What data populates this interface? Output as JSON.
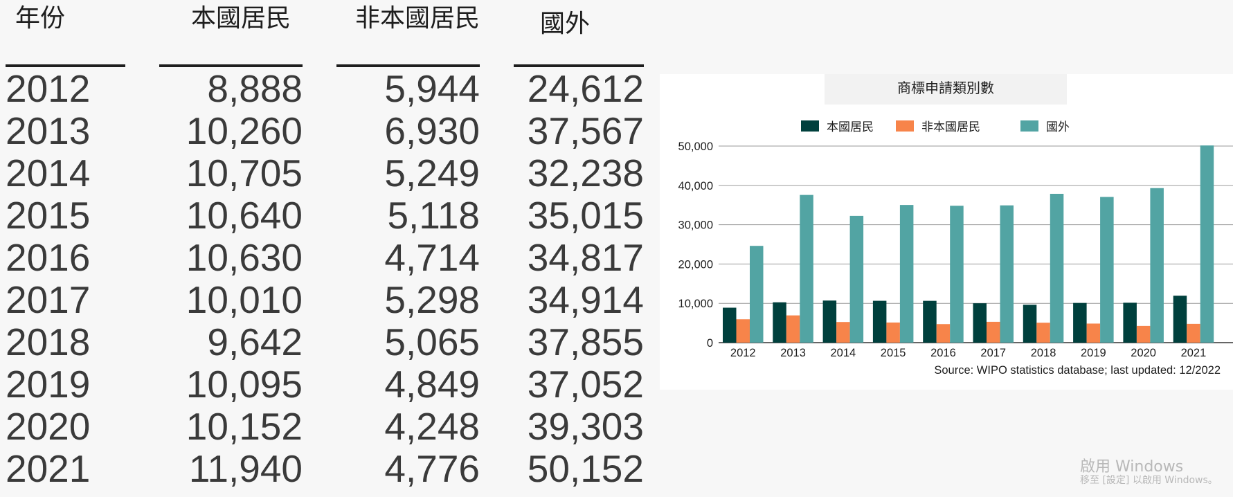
{
  "table": {
    "headers": [
      "年份",
      "本國居民",
      "非本國居民",
      "國外"
    ],
    "rows": [
      [
        "2012",
        "8,888",
        "5,944",
        "24,612"
      ],
      [
        "2013",
        "10,260",
        "6,930",
        "37,567"
      ],
      [
        "2014",
        "10,705",
        "5,249",
        "32,238"
      ],
      [
        "2015",
        "10,640",
        "5,118",
        "35,015"
      ],
      [
        "2016",
        "10,630",
        "4,714",
        "34,817"
      ],
      [
        "2017",
        "10,010",
        "5,298",
        "34,914"
      ],
      [
        "2018",
        "9,642",
        "5,065",
        "37,855"
      ],
      [
        "2019",
        "10,095",
        "4,849",
        "37,052"
      ],
      [
        "2020",
        "10,152",
        "4,248",
        "39,303"
      ],
      [
        "2021",
        "11,940",
        "4,776",
        "50,152"
      ]
    ]
  },
  "chart_data": {
    "type": "bar",
    "title": "商標申請類別數",
    "categories": [
      "2012",
      "2013",
      "2014",
      "2015",
      "2016",
      "2017",
      "2018",
      "2019",
      "2020",
      "2021"
    ],
    "series": [
      {
        "name": "本國居民",
        "color": "#00403d",
        "values": [
          8888,
          10260,
          10705,
          10640,
          10630,
          10010,
          9642,
          10095,
          10152,
          11940
        ]
      },
      {
        "name": "非本國居民",
        "color": "#f7844a",
        "values": [
          5944,
          6930,
          5249,
          5118,
          4714,
          5298,
          5065,
          4849,
          4248,
          4776
        ]
      },
      {
        "name": "國外",
        "color": "#52a4a3",
        "values": [
          24612,
          37567,
          32238,
          35015,
          34817,
          34914,
          37855,
          37052,
          39303,
          50152
        ]
      }
    ],
    "ylim": [
      0,
      50000
    ],
    "yticks": [
      0,
      10000,
      20000,
      30000,
      40000,
      50000
    ],
    "ytick_labels": [
      "0",
      "10,000",
      "20,000",
      "30,000",
      "40,000",
      "50,000"
    ],
    "legend_position": "top",
    "grid": true,
    "source": "Source: WIPO statistics database; last updated: 12/2022"
  },
  "watermark": {
    "line1": "啟用 Windows",
    "line2": "移至 [設定] 以啟用 Windows。"
  }
}
